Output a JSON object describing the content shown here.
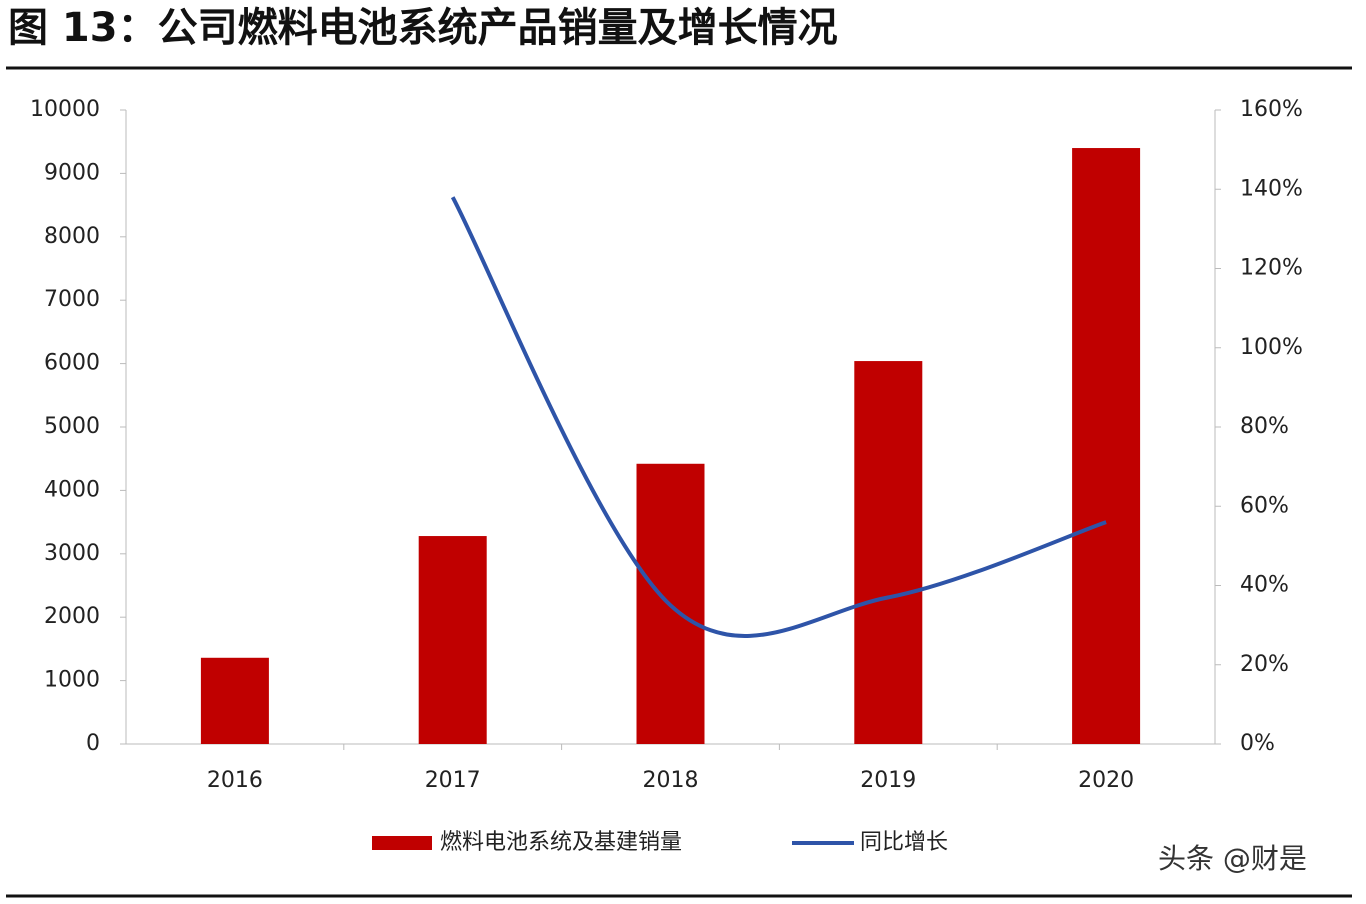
{
  "chart_data": {
    "type": "bar_line",
    "title": "图 13：公司燃料电池系统产品销量及增长情况",
    "categories": [
      "2016",
      "2017",
      "2018",
      "2019",
      "2020"
    ],
    "series": [
      {
        "name": "燃料电池系统及基建销量",
        "color": "#c00000",
        "type": "bar",
        "values": [
          1360,
          3280,
          4420,
          6040,
          9400
        ]
      },
      {
        "name": "同比增长",
        "color": "#2e54a8",
        "type": "line",
        "axis": "y2",
        "values": [
          null,
          138,
          35,
          37,
          56
        ]
      }
    ],
    "ylim": [
      0,
      10000
    ],
    "yticks": [
      0,
      1000,
      2000,
      3000,
      4000,
      5000,
      6000,
      7000,
      8000,
      9000,
      10000
    ],
    "y2lim": [
      0,
      160
    ],
    "y2ticks": [
      {
        "value": 0,
        "label": "0%"
      },
      {
        "value": 20,
        "label": "20%"
      },
      {
        "value": 40,
        "label": "40%"
      },
      {
        "value": 60,
        "label": "60%"
      },
      {
        "value": 80,
        "label": "80%"
      },
      {
        "value": 100,
        "label": "100%"
      },
      {
        "value": 120,
        "label": "120%"
      },
      {
        "value": 140,
        "label": "140%"
      },
      {
        "value": 160,
        "label": "160%"
      }
    ],
    "legend": "bottom"
  },
  "watermark": "头条 @财是"
}
